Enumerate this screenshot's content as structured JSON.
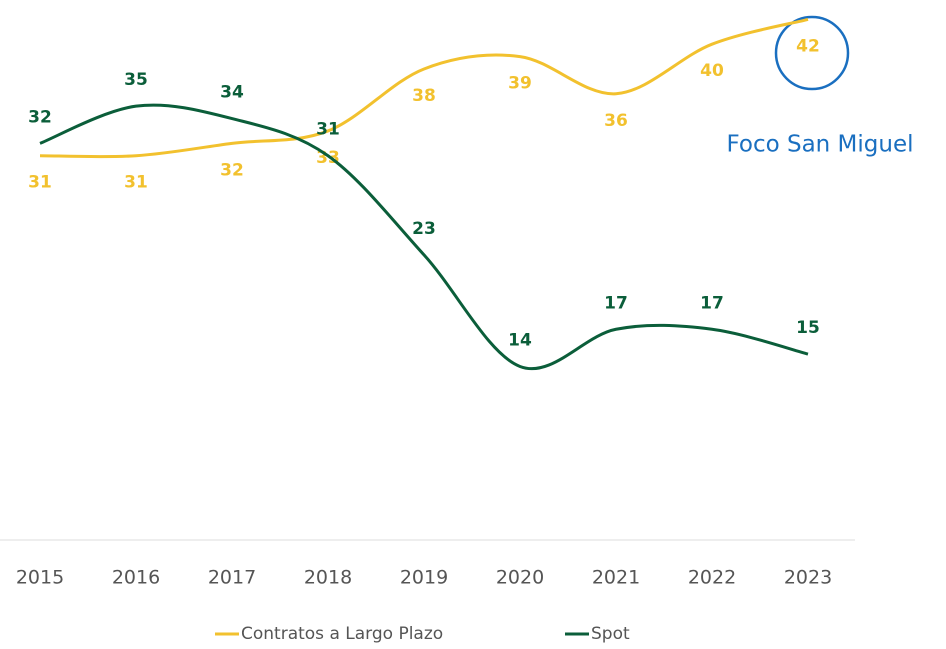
{
  "chart_data": {
    "type": "line",
    "categories": [
      "2015",
      "2016",
      "2017",
      "2018",
      "2019",
      "2020",
      "2021",
      "2022",
      "2023"
    ],
    "series": [
      {
        "name": "Contratos a Largo Plazo",
        "color": "#f2c12e",
        "values": [
          31,
          31,
          32,
          33,
          38,
          39,
          36,
          40,
          42
        ]
      },
      {
        "name": "Spot",
        "color": "#0b5e3a",
        "values": [
          32,
          35,
          34,
          31,
          23,
          14,
          17,
          17,
          15
        ]
      }
    ],
    "ylim": [
      0,
      43
    ],
    "annotation": "Foco San Miguel",
    "annotation_color": "#1a6fc0"
  }
}
